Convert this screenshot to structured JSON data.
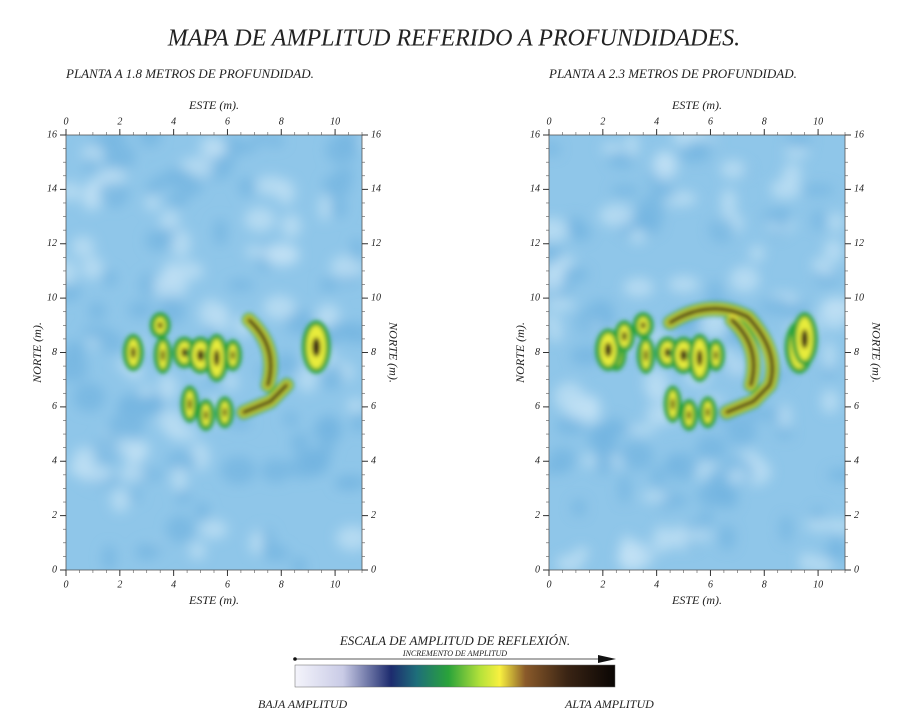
{
  "title": "MAPA DE AMPLITUD REFERIDO A PROFUNDIDADES.",
  "panels": [
    {
      "subtitle": "PLANTA A 1.8 METROS DE PROFUNDIDAD.",
      "x_label": "ESTE (m).",
      "y_label": "NORTE (m).",
      "xlim": [
        0,
        11
      ],
      "ylim": [
        0,
        16
      ],
      "xticks": [
        0,
        2,
        4,
        6,
        8,
        10
      ],
      "yticks": [
        0,
        2,
        4,
        6,
        8,
        10,
        12,
        14,
        16
      ]
    },
    {
      "subtitle": "PLANTA A 2.3 METROS DE PROFUNDIDAD.",
      "x_label": "ESTE (m).",
      "y_label": "NORTE (m).",
      "xlim": [
        0,
        11
      ],
      "ylim": [
        0,
        16
      ],
      "xticks": [
        0,
        2,
        4,
        6,
        8,
        10
      ],
      "yticks": [
        0,
        2,
        4,
        6,
        8,
        10,
        12,
        14,
        16
      ]
    }
  ],
  "legend": {
    "title": "ESCALA DE AMPLITUD DE REFLEXIÓN.",
    "subtitle": "INCREMENTO DE AMPLITUD",
    "low": "BAJA AMPLITUD",
    "high": "ALTA AMPLITUD"
  }
}
